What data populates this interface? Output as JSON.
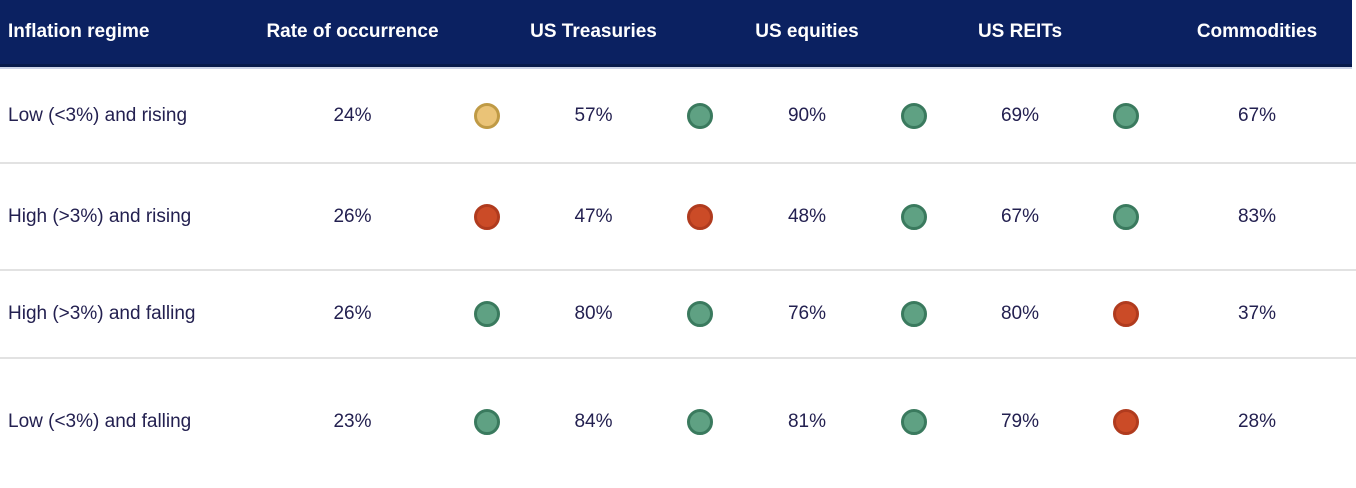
{
  "theme": {
    "header_bg": "#0b2161",
    "header_border_bottom": "#081a4b",
    "header_underline": "#ccd3e8",
    "header_text": "#ffffff",
    "body_text": "#232050",
    "row_separator": "#e2e2e2"
  },
  "status_colors": {
    "positive": {
      "fill": "#5fa183",
      "border": "#3a7a5e"
    },
    "neutral": {
      "fill": "#eac377",
      "border": "#bf9a45"
    },
    "negative": {
      "fill": "#cb4b27",
      "border": "#b03b1e"
    }
  },
  "table": {
    "headers": {
      "regime": "Inflation regime",
      "occurrence": "Rate of occurrence",
      "treasuries": "US Treasuries",
      "equities": "US equities",
      "reits": "US REITs",
      "commodities": "Commodities"
    },
    "rows": [
      {
        "regime": "Low (<3%) and rising",
        "occurrence": "24%",
        "cells": [
          {
            "asset": "US Treasuries",
            "status": "neutral",
            "value": "57%"
          },
          {
            "asset": "US equities",
            "status": "positive",
            "value": "90%"
          },
          {
            "asset": "US REITs",
            "status": "positive",
            "value": "69%"
          },
          {
            "asset": "Commodities",
            "status": "positive",
            "value": "67%"
          }
        ]
      },
      {
        "regime": "High (>3%) and rising",
        "occurrence": "26%",
        "cells": [
          {
            "asset": "US Treasuries",
            "status": "negative",
            "value": "47%"
          },
          {
            "asset": "US equities",
            "status": "negative",
            "value": "48%"
          },
          {
            "asset": "US REITs",
            "status": "positive",
            "value": "67%"
          },
          {
            "asset": "Commodities",
            "status": "positive",
            "value": "83%"
          }
        ]
      },
      {
        "regime": "High (>3%) and falling",
        "occurrence": "26%",
        "cells": [
          {
            "asset": "US Treasuries",
            "status": "positive",
            "value": "80%"
          },
          {
            "asset": "US equities",
            "status": "positive",
            "value": "76%"
          },
          {
            "asset": "US REITs",
            "status": "positive",
            "value": "80%"
          },
          {
            "asset": "Commodities",
            "status": "negative",
            "value": "37%"
          }
        ]
      },
      {
        "regime": "Low (<3%) and falling",
        "occurrence": "23%",
        "cells": [
          {
            "asset": "US Treasuries",
            "status": "positive",
            "value": "84%"
          },
          {
            "asset": "US equities",
            "status": "positive",
            "value": "81%"
          },
          {
            "asset": "US REITs",
            "status": "positive",
            "value": "79%"
          },
          {
            "asset": "Commodities",
            "status": "negative",
            "value": "28%"
          }
        ]
      }
    ]
  },
  "chart_data": {
    "type": "table",
    "columns": [
      "Inflation regime",
      "Rate of occurrence",
      "US Treasuries",
      "US equities",
      "US REITs",
      "Commodities"
    ],
    "rows": [
      [
        "Low (<3%) and rising",
        "24%",
        "57%",
        "90%",
        "69%",
        "67%"
      ],
      [
        "High (>3%) and rising",
        "26%",
        "47%",
        "48%",
        "67%",
        "83%"
      ],
      [
        "High (>3%) and falling",
        "26%",
        "80%",
        "76%",
        "80%",
        "37%"
      ],
      [
        "Low (<3%) and falling",
        "23%",
        "84%",
        "81%",
        "79%",
        "28%"
      ]
    ],
    "dot_ratings": [
      [
        "neutral",
        "positive",
        "positive",
        "positive"
      ],
      [
        "negative",
        "negative",
        "positive",
        "positive"
      ],
      [
        "positive",
        "positive",
        "positive",
        "negative"
      ],
      [
        "positive",
        "positive",
        "positive",
        "negative"
      ]
    ],
    "dot_rating_colors": {
      "positive": "green",
      "neutral": "yellow",
      "negative": "red"
    }
  }
}
